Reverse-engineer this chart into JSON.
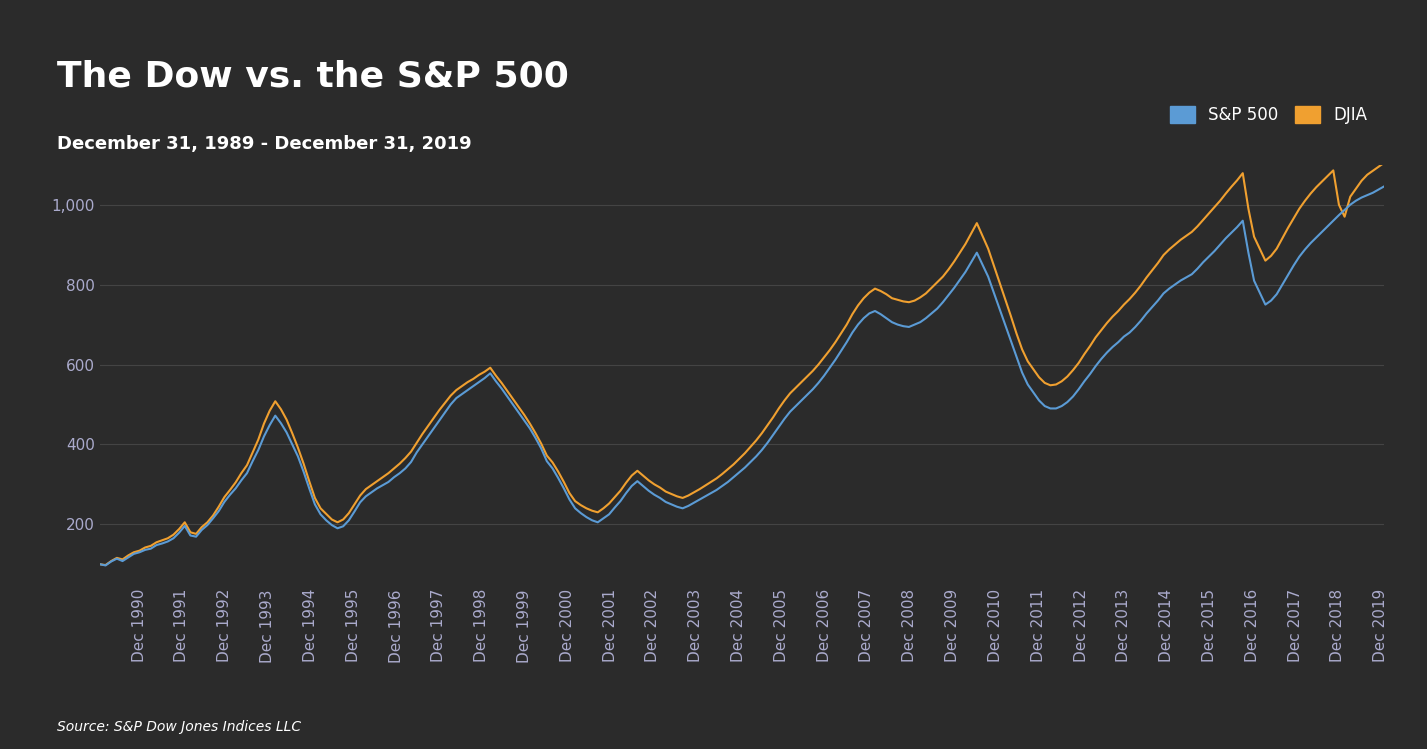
{
  "title": "The Dow vs. the S&P 500",
  "subtitle": "December 31, 1989 - December 31, 2019",
  "source": "Source: S&P Dow Jones Indices LLC",
  "background_color": "#2b2b2b",
  "text_color": "#ffffff",
  "axis_label_color": "#aaaacc",
  "grid_color": "#444444",
  "sp500_color": "#5b9bd5",
  "djia_color": "#f0a030",
  "ylim": [
    50,
    1100
  ],
  "yticks": [
    200,
    400,
    600,
    800,
    1000
  ],
  "title_fontsize": 26,
  "subtitle_fontsize": 13,
  "source_fontsize": 10,
  "tick_fontsize": 11,
  "legend_fontsize": 12,
  "year_start": 1989,
  "year_end": 2019,
  "sp500_data": [
    100,
    97,
    107,
    114,
    108,
    117,
    126,
    130,
    136,
    139,
    148,
    152,
    157,
    165,
    179,
    196,
    172,
    169,
    186,
    198,
    215,
    233,
    256,
    274,
    290,
    310,
    328,
    358,
    386,
    420,
    448,
    472,
    453,
    430,
    400,
    370,
    332,
    290,
    250,
    225,
    210,
    198,
    190,
    195,
    210,
    232,
    255,
    270,
    280,
    290,
    298,
    306,
    318,
    328,
    340,
    356,
    380,
    400,
    420,
    440,
    460,
    480,
    500,
    516,
    526,
    536,
    546,
    556,
    566,
    578,
    558,
    540,
    520,
    500,
    480,
    460,
    440,
    416,
    390,
    358,
    340,
    316,
    290,
    262,
    240,
    228,
    218,
    210,
    205,
    215,
    225,
    242,
    258,
    278,
    296,
    308,
    296,
    284,
    274,
    266,
    256,
    250,
    244,
    240,
    246,
    254,
    262,
    270,
    278,
    286,
    296,
    306,
    318,
    330,
    342,
    356,
    370,
    386,
    404,
    424,
    444,
    464,
    482,
    496,
    510,
    524,
    538,
    554,
    572,
    592,
    612,
    634,
    656,
    680,
    700,
    716,
    728,
    734,
    726,
    716,
    706,
    700,
    696,
    694,
    700,
    706,
    716,
    728,
    740,
    756,
    774,
    792,
    812,
    832,
    856,
    880,
    850,
    820,
    780,
    740,
    700,
    660,
    620,
    580,
    550,
    530,
    510,
    496,
    490,
    490,
    496,
    506,
    520,
    538,
    558,
    576,
    596,
    614,
    630,
    644,
    656,
    670,
    680,
    694,
    710,
    728,
    744,
    760,
    778,
    790,
    800,
    810,
    818,
    826,
    840,
    856,
    870,
    884,
    900,
    916,
    930,
    944,
    960,
    880,
    810,
    780,
    750,
    760,
    776,
    800,
    824,
    848,
    870,
    888,
    904,
    918,
    932,
    946,
    960,
    974,
    987,
    1000,
    1010,
    1018,
    1024,
    1030,
    1038,
    1046
  ],
  "djia_data": [
    100,
    98,
    108,
    116,
    112,
    122,
    130,
    134,
    142,
    146,
    155,
    160,
    165,
    174,
    188,
    205,
    180,
    176,
    193,
    205,
    222,
    244,
    268,
    286,
    305,
    328,
    348,
    380,
    412,
    452,
    484,
    508,
    488,
    462,
    428,
    392,
    352,
    308,
    266,
    240,
    226,
    212,
    205,
    212,
    228,
    250,
    272,
    288,
    298,
    308,
    318,
    328,
    340,
    352,
    366,
    382,
    404,
    426,
    446,
    466,
    486,
    504,
    522,
    536,
    546,
    556,
    564,
    574,
    582,
    592,
    572,
    554,
    534,
    514,
    494,
    474,
    452,
    428,
    402,
    372,
    355,
    332,
    306,
    278,
    258,
    248,
    240,
    234,
    230,
    240,
    252,
    268,
    284,
    304,
    322,
    334,
    322,
    310,
    300,
    292,
    282,
    276,
    270,
    266,
    272,
    280,
    288,
    297,
    306,
    315,
    326,
    338,
    350,
    364,
    378,
    394,
    410,
    428,
    448,
    468,
    490,
    510,
    528,
    542,
    556,
    570,
    584,
    600,
    618,
    636,
    656,
    678,
    700,
    726,
    748,
    766,
    780,
    790,
    784,
    776,
    766,
    762,
    758,
    756,
    760,
    768,
    778,
    792,
    806,
    820,
    838,
    858,
    880,
    902,
    928,
    954,
    922,
    890,
    848,
    806,
    764,
    722,
    678,
    638,
    608,
    588,
    568,
    554,
    548,
    550,
    558,
    570,
    586,
    604,
    626,
    646,
    668,
    686,
    704,
    720,
    734,
    750,
    764,
    780,
    798,
    818,
    836,
    854,
    874,
    888,
    900,
    912,
    922,
    932,
    946,
    962,
    978,
    994,
    1010,
    1028,
    1045,
    1061,
    1079,
    990,
    920,
    890,
    860,
    872,
    890,
    916,
    942,
    966,
    990,
    1010,
    1028,
    1044,
    1058,
    1072,
    1086,
    1000,
    970,
    1020,
    1040,
    1060,
    1075,
    1085,
    1095,
    1105
  ]
}
